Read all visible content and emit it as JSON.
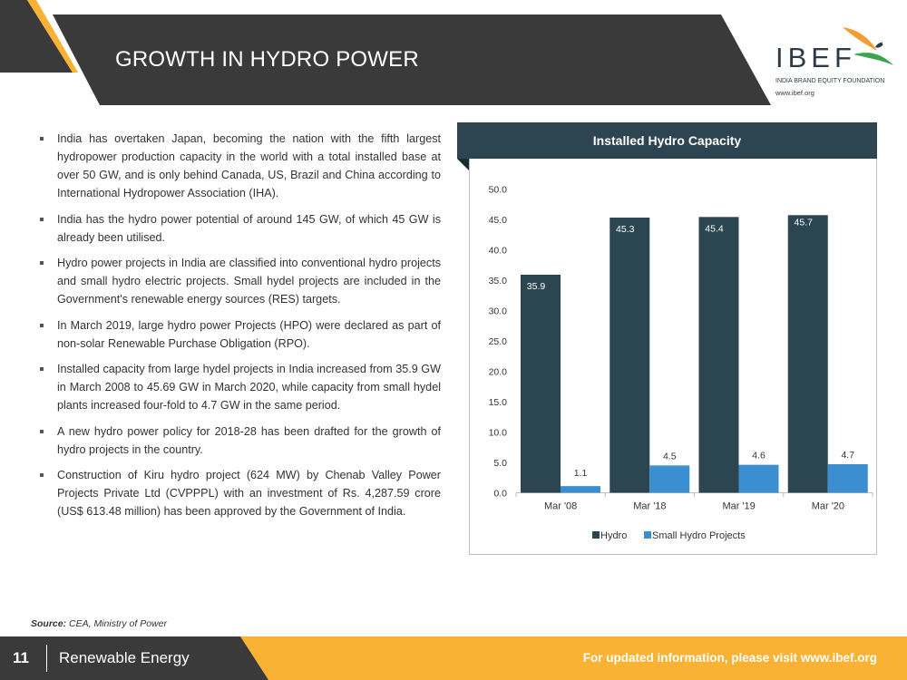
{
  "header": {
    "title": "GROWTH IN HYDRO POWER"
  },
  "logo": {
    "wordmark": "IBEF",
    "tagline": "INDIA BRAND EQUITY FOUNDATION",
    "url": "www.ibef.org"
  },
  "bullets": [
    "India has overtaken Japan, becoming the nation with the fifth largest hydropower production capacity in the world with a total installed base at over 50 GW, and is only behind Canada, US, Brazil and China according to International Hydropower Association (IHA).",
    "India has the hydro power potential of around 145 GW, of which 45 GW is already been utilised.",
    "Hydro power projects in India are classified into conventional hydro projects and small hydro electric projects. Small hydel projects are included in the Government's renewable energy sources (RES) targets.",
    "In March 2019, large hydro power Projects (HPO) were declared as part of non-solar Renewable Purchase Obligation (RPO).",
    "Installed capacity from large hydel projects in India increased from 35.9 GW in March 2008 to 45.69 GW in March 2020, while capacity from small hydel plants increased four-fold to 4.7 GW in the same period.",
    "A new hydro power policy for 2018-28 has been drafted for the growth of hydro projects in the country.",
    "Construction of Kiru hydro project (624 MW) by Chenab Valley Power Projects Private Ltd (CVPPPL) with an investment of Rs. 4,287.59 crore (US$ 613.48 million) has been approved by the Government of India."
  ],
  "chart_data": {
    "type": "bar",
    "title": "Installed Hydro Capacity",
    "categories": [
      "Mar '08",
      "Mar '18",
      "Mar '19",
      "Mar '20"
    ],
    "series": [
      {
        "name": "Hydro",
        "color": "#2b4650",
        "values": [
          35.9,
          45.3,
          45.4,
          45.7
        ]
      },
      {
        "name": "Small Hydro Projects",
        "color": "#3b8fd0",
        "values": [
          1.1,
          4.5,
          4.6,
          4.7
        ]
      }
    ],
    "data_labels": [
      [
        "35.9",
        "45.3",
        "45.4",
        "45.7"
      ],
      [
        "1.1",
        "4.5",
        "4.6",
        "4.7"
      ]
    ],
    "yticks": [
      "0.0",
      "5.0",
      "10.0",
      "15.0",
      "20.0",
      "25.0",
      "30.0",
      "35.0",
      "40.0",
      "45.0",
      "50.0"
    ],
    "ylim": [
      0,
      50
    ],
    "xlabel": "",
    "ylabel": "",
    "grid": false,
    "legend": "bottom-center"
  },
  "source": {
    "label": "Source:",
    "text": "CEA, Ministry of Power"
  },
  "footer": {
    "page_number": "11",
    "section": "Renewable Energy",
    "url_text": "For updated information, please visit www.ibef.org"
  },
  "colors": {
    "dark": "#3a3a3a",
    "accent_orange": "#f9b233",
    "chart_header": "#2d4550"
  }
}
